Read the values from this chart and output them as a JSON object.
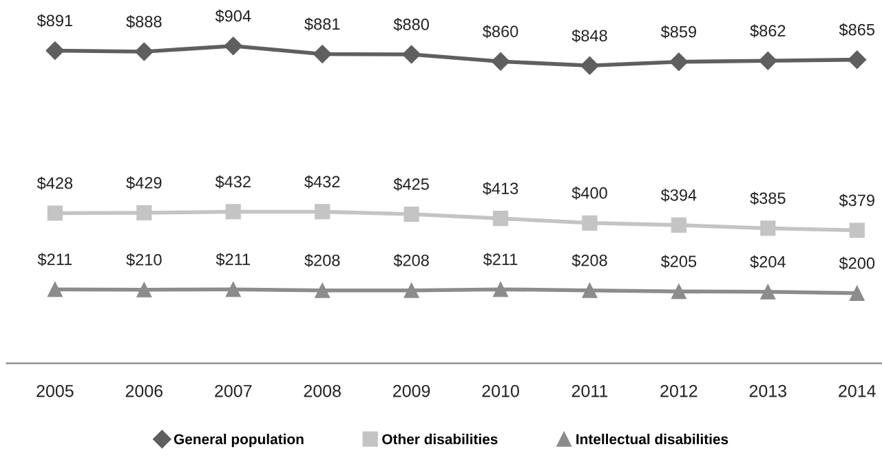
{
  "chart_data": {
    "type": "line",
    "categories": [
      "2005",
      "2006",
      "2007",
      "2008",
      "2009",
      "2010",
      "2011",
      "2012",
      "2013",
      "2014"
    ],
    "tick_labels": "x",
    "legend": "bottom",
    "grid": false,
    "series": [
      {
        "name": "General population",
        "color": "#5f5f5f",
        "marker": "diamond",
        "values": [
          891,
          888,
          904,
          881,
          880,
          860,
          848,
          859,
          862,
          865
        ],
        "value_labels": [
          "$891",
          "$888",
          "$904",
          "$881",
          "$880",
          "$860",
          "$848",
          "$859",
          "$862",
          "$865"
        ]
      },
      {
        "name": "Other disabilities",
        "color": "#c4c4c4",
        "marker": "square",
        "values": [
          428,
          429,
          432,
          432,
          425,
          413,
          400,
          394,
          385,
          379
        ],
        "value_labels": [
          "$428",
          "$429",
          "$432",
          "$432",
          "$425",
          "$413",
          "$400",
          "$394",
          "$385",
          "$379"
        ]
      },
      {
        "name": "Intellectual disabilities",
        "color": "#8c8c8c",
        "marker": "triangle",
        "values": [
          211,
          210,
          211,
          208,
          208,
          211,
          208,
          205,
          204,
          200
        ],
        "value_labels": [
          "$211",
          "$210",
          "$211",
          "$208",
          "$208",
          "$211",
          "$208",
          "$205",
          "$204",
          "$200"
        ]
      }
    ]
  }
}
